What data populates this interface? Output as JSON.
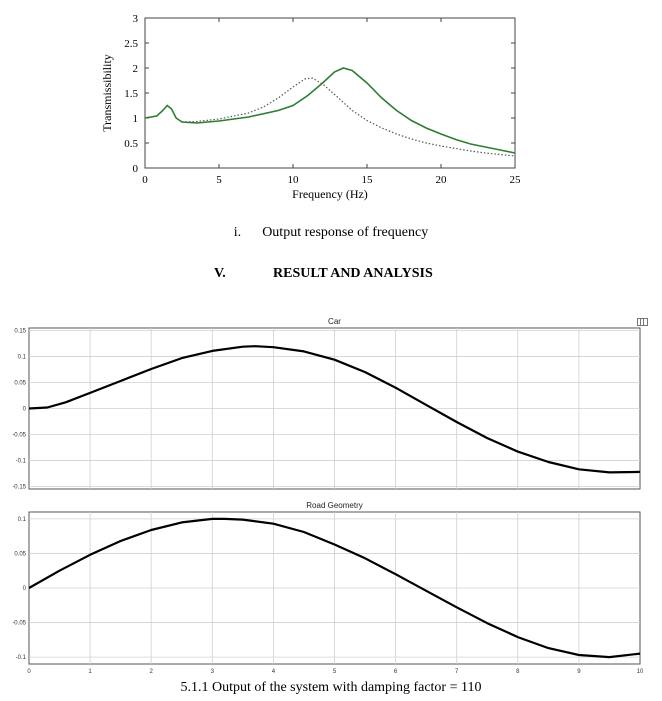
{
  "chart_data": [
    {
      "type": "line",
      "title": "",
      "xlabel": "Frequency (Hz)",
      "ylabel": "Transmissibility",
      "xlim": [
        0,
        25
      ],
      "ylim": [
        0,
        3
      ],
      "xticks": [
        "0",
        "5",
        "10",
        "15",
        "20",
        "25"
      ],
      "yticks": [
        "0",
        "0.5",
        "1",
        "1.5",
        "2",
        "2.5",
        "3"
      ],
      "series": [
        {
          "color": "#2e7d32",
          "style": "solid",
          "points": [
            [
              0,
              1.0
            ],
            [
              0.8,
              1.04
            ],
            [
              1.2,
              1.15
            ],
            [
              1.5,
              1.25
            ],
            [
              1.8,
              1.18
            ],
            [
              2.1,
              1.0
            ],
            [
              2.5,
              0.92
            ],
            [
              3.5,
              0.9
            ],
            [
              5,
              0.94
            ],
            [
              7,
              1.02
            ],
            [
              9,
              1.15
            ],
            [
              10,
              1.25
            ],
            [
              11,
              1.45
            ],
            [
              12,
              1.7
            ],
            [
              12.8,
              1.92
            ],
            [
              13.4,
              2.0
            ],
            [
              14,
              1.95
            ],
            [
              15,
              1.7
            ],
            [
              16,
              1.4
            ],
            [
              17,
              1.15
            ],
            [
              18,
              0.95
            ],
            [
              19,
              0.8
            ],
            [
              20,
              0.68
            ],
            [
              21,
              0.57
            ],
            [
              22,
              0.48
            ],
            [
              23,
              0.42
            ],
            [
              24,
              0.36
            ],
            [
              25,
              0.3
            ]
          ]
        },
        {
          "color": "#555555",
          "style": "dotted",
          "points": [
            [
              2.5,
              0.92
            ],
            [
              3.5,
              0.93
            ],
            [
              5,
              0.98
            ],
            [
              7,
              1.1
            ],
            [
              8,
              1.22
            ],
            [
              9,
              1.4
            ],
            [
              10,
              1.62
            ],
            [
              10.8,
              1.78
            ],
            [
              11.3,
              1.8
            ],
            [
              12,
              1.68
            ],
            [
              13,
              1.42
            ],
            [
              14,
              1.15
            ],
            [
              15,
              0.95
            ],
            [
              16,
              0.8
            ],
            [
              17,
              0.68
            ],
            [
              18,
              0.58
            ],
            [
              19,
              0.5
            ],
            [
              20,
              0.44
            ],
            [
              21,
              0.39
            ],
            [
              22,
              0.34
            ],
            [
              23,
              0.3
            ],
            [
              24,
              0.27
            ],
            [
              25,
              0.24
            ]
          ]
        }
      ]
    },
    {
      "type": "line",
      "title": "Car",
      "xlim": [
        0,
        10
      ],
      "ylim": [
        -0.155,
        0.155
      ],
      "yticks": [
        "0.15",
        "0.1",
        "0.05",
        "0",
        "-0.05",
        "-0.1",
        "-0.15"
      ],
      "series": [
        {
          "color": "#000000",
          "points": [
            [
              0,
              0.0
            ],
            [
              0.3,
              0.002
            ],
            [
              0.6,
              0.012
            ],
            [
              1,
              0.03
            ],
            [
              1.5,
              0.053
            ],
            [
              2,
              0.076
            ],
            [
              2.5,
              0.097
            ],
            [
              3,
              0.111
            ],
            [
              3.5,
              0.119
            ],
            [
              3.7,
              0.12
            ],
            [
              4,
              0.118
            ],
            [
              4.5,
              0.11
            ],
            [
              5,
              0.094
            ],
            [
              5.5,
              0.07
            ],
            [
              6,
              0.04
            ],
            [
              6.5,
              0.007
            ],
            [
              7,
              -0.026
            ],
            [
              7.5,
              -0.057
            ],
            [
              8,
              -0.083
            ],
            [
              8.5,
              -0.103
            ],
            [
              9,
              -0.117
            ],
            [
              9.5,
              -0.123
            ],
            [
              10,
              -0.122
            ]
          ]
        }
      ]
    },
    {
      "type": "line",
      "title": "Road Geometry",
      "xlim": [
        0,
        10
      ],
      "ylim": [
        -0.11,
        0.11
      ],
      "xticks": [
        "0",
        "1",
        "2",
        "3",
        "4",
        "5",
        "6",
        "7",
        "8",
        "9",
        "10"
      ],
      "yticks": [
        "0.1",
        "0.05",
        "0",
        "-0.05",
        "-0.1"
      ],
      "series": [
        {
          "color": "#000000",
          "points": [
            [
              0,
              0.0
            ],
            [
              0.5,
              0.025
            ],
            [
              1,
              0.048
            ],
            [
              1.5,
              0.068
            ],
            [
              2,
              0.084
            ],
            [
              2.5,
              0.095
            ],
            [
              3,
              0.1
            ],
            [
              3.2,
              0.1
            ],
            [
              3.5,
              0.099
            ],
            [
              4,
              0.093
            ],
            [
              4.5,
              0.081
            ],
            [
              5,
              0.063
            ],
            [
              5.5,
              0.043
            ],
            [
              6,
              0.02
            ],
            [
              6.5,
              -0.004
            ],
            [
              7,
              -0.028
            ],
            [
              7.5,
              -0.051
            ],
            [
              8,
              -0.071
            ],
            [
              8.5,
              -0.087
            ],
            [
              9,
              -0.097
            ],
            [
              9.5,
              -0.1
            ],
            [
              10,
              -0.095
            ]
          ]
        }
      ]
    }
  ],
  "captions": {
    "fig_i_number": "i.",
    "fig_i_text": "Output response of frequency",
    "section_number": "V.",
    "section_title": "RESULT AND ANALYSIS",
    "fig_511": "5.1.1 Output of the system with damping factor = 110"
  },
  "scope_toolbar_icon": "scope-corner-icon"
}
